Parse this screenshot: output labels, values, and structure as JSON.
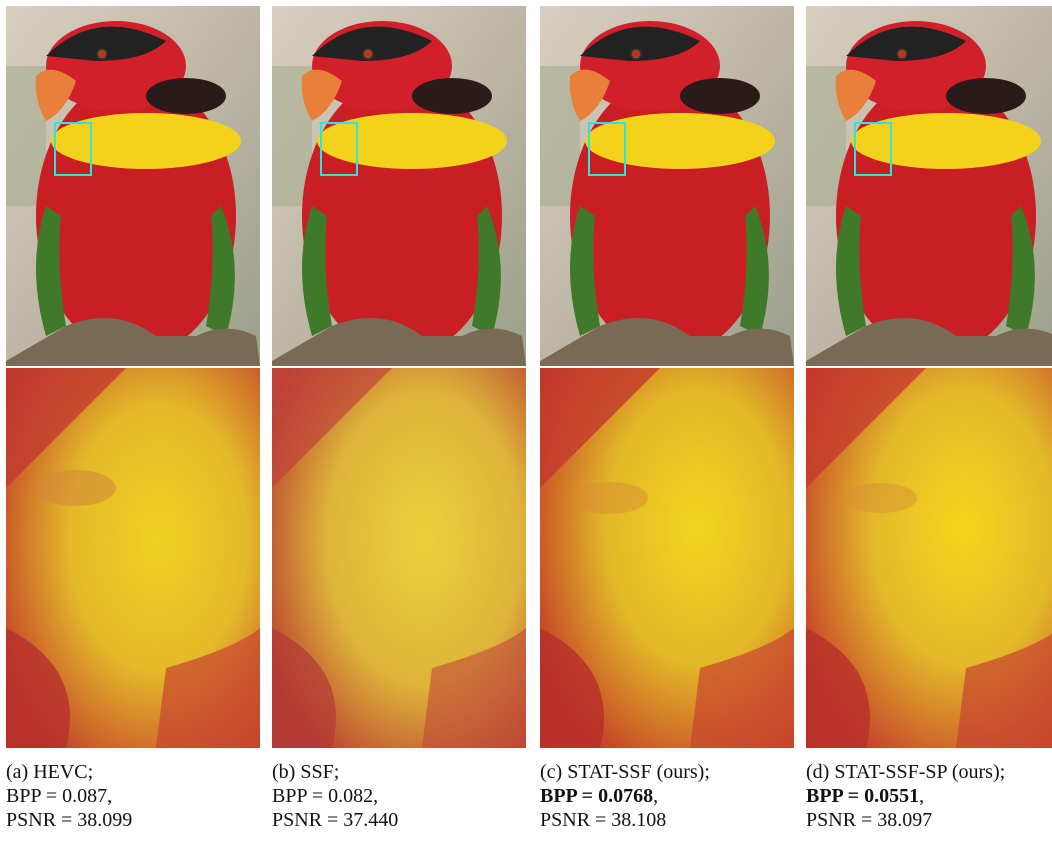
{
  "panels": [
    {
      "label": "(a) HEVC;",
      "bpp_text": "BPP = 0.087,",
      "bpp_bold": false,
      "psnr_text": "PSNR = 38.099"
    },
    {
      "label": "(b) SSF;",
      "bpp_text": "BPP = 0.082,",
      "bpp_bold": false,
      "psnr_text": "PSNR = 37.440"
    },
    {
      "label": "(c) STAT-SSF (ours);",
      "bpp_text": "BPP = 0.0768",
      "bpp_bold": true,
      "bpp_suffix": ",",
      "psnr_text": "PSNR = 38.108"
    },
    {
      "label": "(d) STAT-SSF-SP (ours);",
      "bpp_text": "BPP = 0.0551",
      "bpp_bold": true,
      "bpp_suffix": ",",
      "psnr_text": "PSNR = 38.097"
    }
  ],
  "colors": {
    "inset_box": "#2de3e3",
    "parrot_red": "#c81e24",
    "parrot_yellow": "#f2d21a",
    "head_black": "#222222"
  }
}
